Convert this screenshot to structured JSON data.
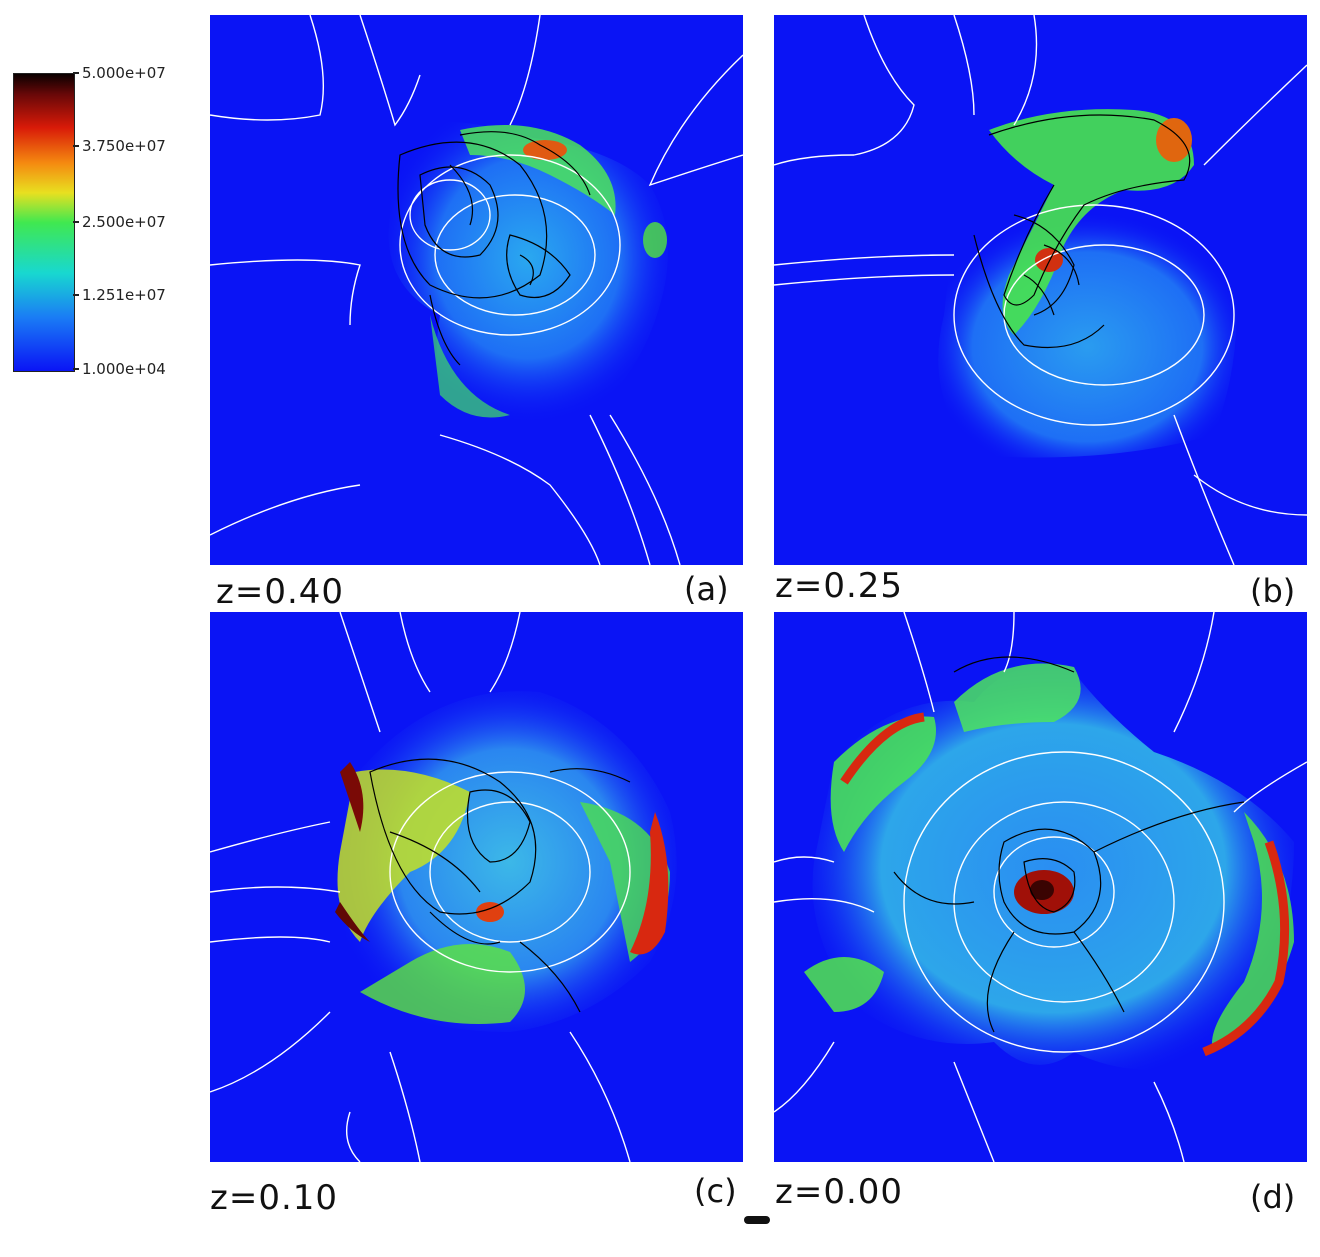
{
  "colorbar": {
    "ticks": [
      "5.000e+07",
      "3.750e+07",
      "2.500e+07",
      "1.251e+07",
      "1.000e+04"
    ]
  },
  "panels": [
    {
      "z_label": "z=0.40",
      "tag": "(a)"
    },
    {
      "z_label": "z=0.25",
      "tag": "(b)"
    },
    {
      "z_label": "z=0.10",
      "tag": "(c)"
    },
    {
      "z_label": "z=0.00",
      "tag": "(d)"
    }
  ],
  "colors": {
    "background_field": "#0a14f5",
    "contour_white": "#ffffff",
    "contour_black": "#000000"
  }
}
